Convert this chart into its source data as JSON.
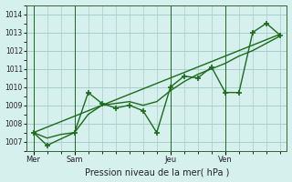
{
  "background_color": "#d6f0ee",
  "grid_color": "#aacccc",
  "line_color": "#1a6b1a",
  "title": "Pression niveau de la mer( hPa )",
  "ylim": [
    1006.5,
    1014.5
  ],
  "yticks": [
    1007,
    1008,
    1009,
    1010,
    1011,
    1012,
    1013,
    1014
  ],
  "x_day_labels": [
    "Mer",
    "Sam",
    "Jeu",
    "Ven"
  ],
  "vline_positions": [
    0,
    3,
    10,
    14
  ],
  "xtick_positions": [
    0,
    3,
    10,
    14
  ],
  "zigzag_x": [
    0,
    1,
    3,
    4,
    5,
    6,
    7,
    8,
    9,
    10,
    11,
    12,
    13,
    14,
    15,
    16,
    17,
    18
  ],
  "zigzag_y": [
    1007.5,
    1006.8,
    1007.5,
    1009.7,
    1009.1,
    1008.85,
    1009.0,
    1008.7,
    1007.5,
    1010.0,
    1010.6,
    1010.5,
    1011.1,
    1009.7,
    1009.7,
    1013.0,
    1013.5,
    1012.85
  ],
  "smooth_x": [
    0,
    1,
    2,
    3,
    4,
    5,
    6,
    7,
    8,
    9,
    10,
    11,
    12,
    13,
    14,
    15,
    16,
    17,
    18
  ],
  "smooth_y": [
    1007.5,
    1007.2,
    1007.4,
    1007.5,
    1008.5,
    1009.0,
    1009.1,
    1009.2,
    1009.0,
    1009.2,
    1009.8,
    1010.3,
    1010.7,
    1011.0,
    1011.3,
    1011.7,
    1012.0,
    1012.4,
    1012.8
  ],
  "trend_x": [
    0,
    18
  ],
  "trend_y": [
    1007.5,
    1012.9
  ],
  "xlim": [
    -0.5,
    18.5
  ]
}
